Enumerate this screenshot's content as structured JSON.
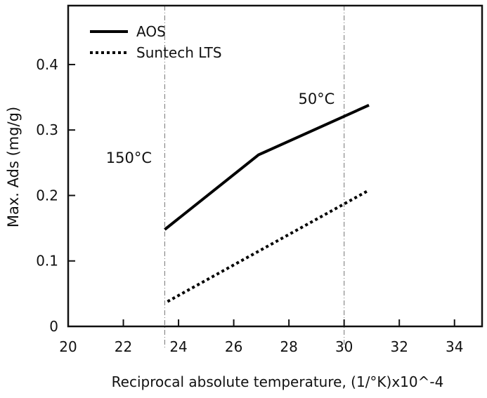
{
  "chart_data": {
    "type": "line",
    "title": "",
    "xlabel": "Reciprocal absolute temperature, (1/°K)x10^-4",
    "ylabel": "Max. Ads (mg/g)",
    "xlim": [
      20,
      35
    ],
    "ylim": [
      0,
      0.49
    ],
    "xticks": [
      20,
      22,
      24,
      26,
      28,
      30,
      32,
      34
    ],
    "xtick_labels": [
      "20",
      "22",
      "24",
      "26",
      "28",
      "30",
      "32",
      "34"
    ],
    "yticks": [
      0,
      0.1,
      0.2,
      0.3,
      0.4
    ],
    "ytick_labels": [
      "0",
      "0.1",
      "0.2",
      "0.3",
      "0.4"
    ],
    "grid": false,
    "legend_position": "top-left",
    "reference_lines": [
      {
        "x": 23.5
      },
      {
        "x": 30.0
      }
    ],
    "annotations": [
      {
        "text": "150°C",
        "x": 22.2,
        "y": 0.25
      },
      {
        "text": "50°C",
        "x": 29.0,
        "y": 0.34
      }
    ],
    "series": [
      {
        "name": "AOS",
        "style": "solid",
        "color": "#000000",
        "x": [
          23.5,
          26.9,
          30.9
        ],
        "y": [
          0.148,
          0.262,
          0.338
        ]
      },
      {
        "name": "Suntech LTS",
        "style": "dotted",
        "color": "#000000",
        "x": [
          23.6,
          30.9
        ],
        "y": [
          0.038,
          0.208
        ]
      }
    ]
  }
}
